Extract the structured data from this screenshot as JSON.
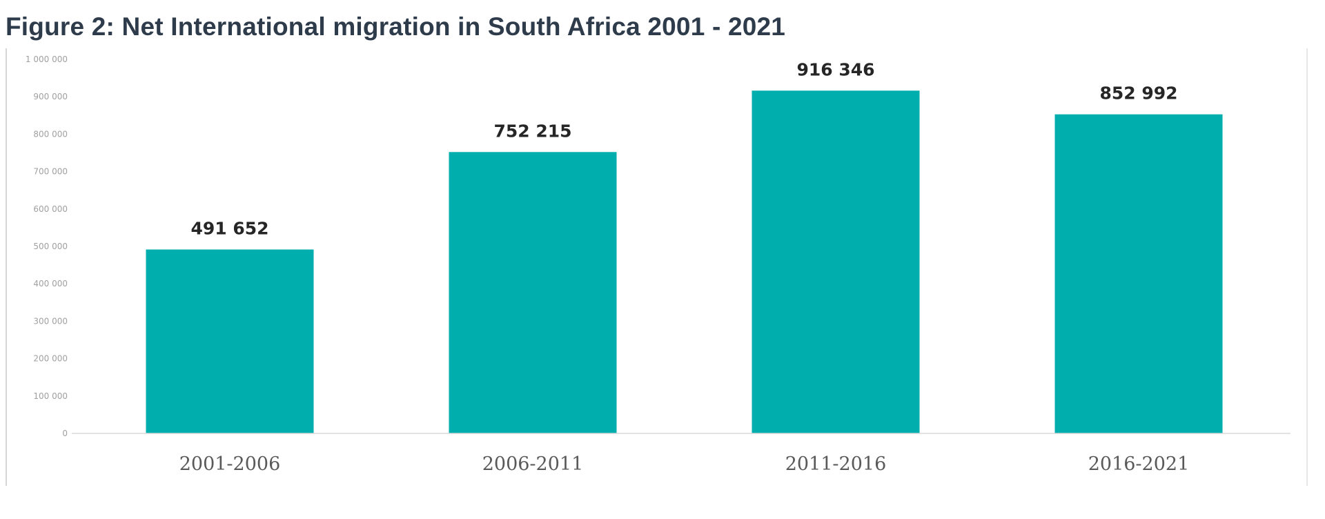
{
  "chart_data": {
    "type": "bar",
    "title": "Figure 2: Net International migration in South Africa 2001 - 2021",
    "categories": [
      "2001-2006",
      "2006-2011",
      "2011-2016",
      "2016-2021"
    ],
    "values": [
      491652,
      752215,
      916346,
      852992
    ],
    "data_labels": [
      "491 652",
      "752 215",
      "916 346",
      "852 992"
    ],
    "yticks": [
      0,
      100000,
      200000,
      300000,
      400000,
      500000,
      600000,
      700000,
      800000,
      900000,
      1000000
    ],
    "ytick_labels": [
      "0",
      "100 000",
      "200 000",
      "300 000",
      "400 000",
      "500 000",
      "600 000",
      "700 000",
      "800 000",
      "900 000",
      "1 000 000"
    ],
    "ylim": [
      0,
      1000000
    ],
    "xlabel": "",
    "ylabel": "",
    "grid": false,
    "colors": {
      "bar": "#00AEAE",
      "title": "#2E3B4B"
    }
  }
}
